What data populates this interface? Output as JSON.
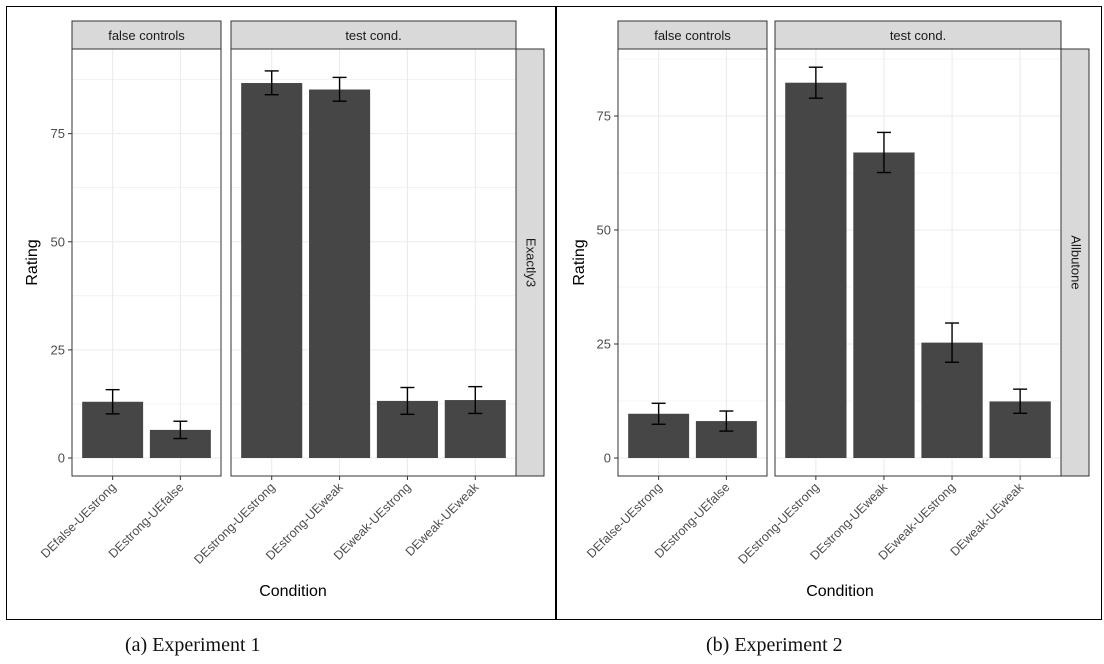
{
  "captions": {
    "a": "(a) Experiment 1",
    "b": "(b) Experiment 2"
  },
  "colors": {
    "bar": "#464646",
    "strip": "#d9d9d9",
    "grid": "#ebebeb",
    "panel_border": "#333333"
  },
  "chart_data": [
    {
      "type": "bar",
      "xlabel": "Condition",
      "ylabel": "Rating",
      "ylim": [
        0,
        90
      ],
      "yticks": [
        0,
        25,
        50,
        75
      ],
      "grid": true,
      "facet_row_label": "Exactly3",
      "panels": [
        {
          "label": "false controls",
          "categories": [
            "DEfalse-UEstrong",
            "DEstrong-UEfalse"
          ],
          "values": [
            13,
            6.5
          ],
          "error_low": [
            10.2,
            4.5
          ],
          "error_high": [
            15.8,
            8.5
          ]
        },
        {
          "label": "test cond.",
          "categories": [
            "DEstrong-UEstrong",
            "DEstrong-UEweak",
            "DEweak-UEstrong",
            "DEweak-UEweak"
          ],
          "values": [
            86.7,
            85.2,
            13.2,
            13.4
          ],
          "error_low": [
            84.0,
            82.5,
            10.1,
            10.3
          ],
          "error_high": [
            89.5,
            88.0,
            16.3,
            16.5
          ]
        }
      ]
    },
    {
      "type": "bar",
      "xlabel": "Condition",
      "ylabel": "Rating",
      "ylim": [
        0,
        88
      ],
      "yticks": [
        0,
        25,
        50,
        75
      ],
      "grid": true,
      "facet_row_label": "Allbutone",
      "panels": [
        {
          "label": "false controls",
          "categories": [
            "DEfalse-UEstrong",
            "DEstrong-UEfalse"
          ],
          "values": [
            9.7,
            8.1
          ],
          "error_low": [
            7.4,
            5.9
          ],
          "error_high": [
            12.0,
            10.3
          ]
        },
        {
          "label": "test cond.",
          "categories": [
            "DEstrong-UEstrong",
            "DEstrong-UEweak",
            "DEweak-UEstrong",
            "DEweak-UEweak"
          ],
          "values": [
            82.3,
            67.0,
            25.3,
            12.4
          ],
          "error_low": [
            78.9,
            62.6,
            21.0,
            9.8
          ],
          "error_high": [
            85.7,
            71.4,
            29.6,
            15.1
          ]
        }
      ]
    }
  ]
}
